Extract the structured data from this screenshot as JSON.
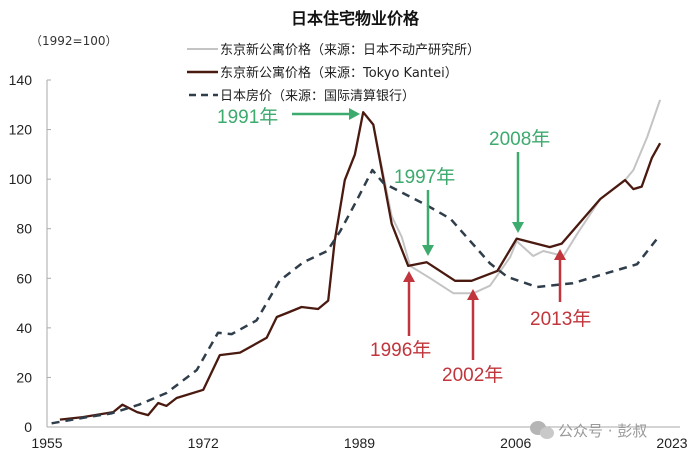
{
  "chart_data": {
    "type": "line",
    "title": "日本住宅物业价格",
    "unit_label": "（1992=100）",
    "xlim": [
      1955,
      2023
    ],
    "ylim": [
      0,
      140
    ],
    "x_ticks": [
      1955,
      1972,
      1989,
      2006,
      2023
    ],
    "y_ticks": [
      0,
      20,
      40,
      60,
      80,
      100,
      120,
      140
    ],
    "grid": false,
    "legend_position": "top-center",
    "series": [
      {
        "name": "东京新公寓价格（来源：日本不动产研究所）",
        "color": "#c4c4c4",
        "style": "solid",
        "x": [
          1989.4,
          1990.5,
          1992.5,
          1993.6,
          1994.5,
          1996.7,
          1999.2,
          2001.4,
          2003.2,
          2005.4,
          2006.1,
          2007.9,
          2009.0,
          2011.2,
          2012.7,
          2015.2,
          2017.9,
          2018.8,
          2020.3,
          2021.7
        ],
        "y": [
          127,
          122,
          85,
          76.6,
          65,
          60,
          54,
          54,
          57,
          68.6,
          75,
          69,
          71,
          69,
          78,
          92,
          99.6,
          103.7,
          117,
          132
        ]
      },
      {
        "name": "东京新公寓价格（来源：Tokyo Kantei）",
        "color": "#4a1a10",
        "style": "solid",
        "x": [
          1956.4,
          1958.9,
          1962.2,
          1963.2,
          1964.8,
          1966.0,
          1967.1,
          1968.0,
          1969.1,
          1972.0,
          1973.8,
          1976.0,
          1978.9,
          1980.0,
          1981.1,
          1982.7,
          1984.5,
          1985.6,
          1986.3,
          1987.4,
          1988.5,
          1989.4,
          1990.5,
          1992.5,
          1994.3,
          1996.3,
          1999.4,
          2001.2,
          2004.0,
          2006.1,
          2009.7,
          2011.0,
          2015.2,
          2017.9,
          2018.8,
          2019.7,
          2020.8,
          2021.7
        ],
        "y": [
          3,
          4,
          6,
          9,
          6,
          4.8,
          9.7,
          8.5,
          11.7,
          15,
          29,
          30,
          36,
          44.4,
          46,
          48.4,
          47.6,
          51,
          75,
          99.6,
          110,
          127,
          122,
          82,
          65,
          66.5,
          59,
          59,
          63,
          76,
          72.6,
          74,
          92,
          99.6,
          96,
          97,
          108.5,
          114.5
        ]
      },
      {
        "name": "日本房价（来源：国际清算银行）",
        "color": "#2f3e4a",
        "style": "dashed",
        "x": [
          1955.5,
          1959.4,
          1962.0,
          1965.0,
          1968.0,
          1971.3,
          1973.6,
          1975.1,
          1977.8,
          1980.3,
          1982.9,
          1985.5,
          1986.9,
          1988.5,
          1990.4,
          1991.6,
          1996.3,
          1998.9,
          2003.2,
          2005.1,
          2008.3,
          2012.2,
          2019.2,
          2021.7
        ],
        "y": [
          1.5,
          4,
          5.5,
          9,
          13.7,
          23,
          38,
          37.5,
          43,
          59,
          66.5,
          71,
          79,
          90,
          103.7,
          98.4,
          89.5,
          84,
          66,
          60.5,
          56.5,
          58,
          65.7,
          77.5
        ]
      }
    ],
    "annotations": [
      {
        "label": "1991年",
        "color": "#3daa6e",
        "direction": "right"
      },
      {
        "label": "1997年",
        "color": "#3daa6e",
        "direction": "down"
      },
      {
        "label": "2008年",
        "color": "#3daa6e",
        "direction": "down"
      },
      {
        "label": "1996年",
        "color": "#c1353c",
        "direction": "up"
      },
      {
        "label": "2002年",
        "color": "#c1353c",
        "direction": "up"
      },
      {
        "label": "2013年",
        "color": "#c1353c",
        "direction": "up"
      }
    ]
  },
  "watermark": {
    "text": "公众号 · 彭叔",
    "icon": "wechat-icon"
  }
}
